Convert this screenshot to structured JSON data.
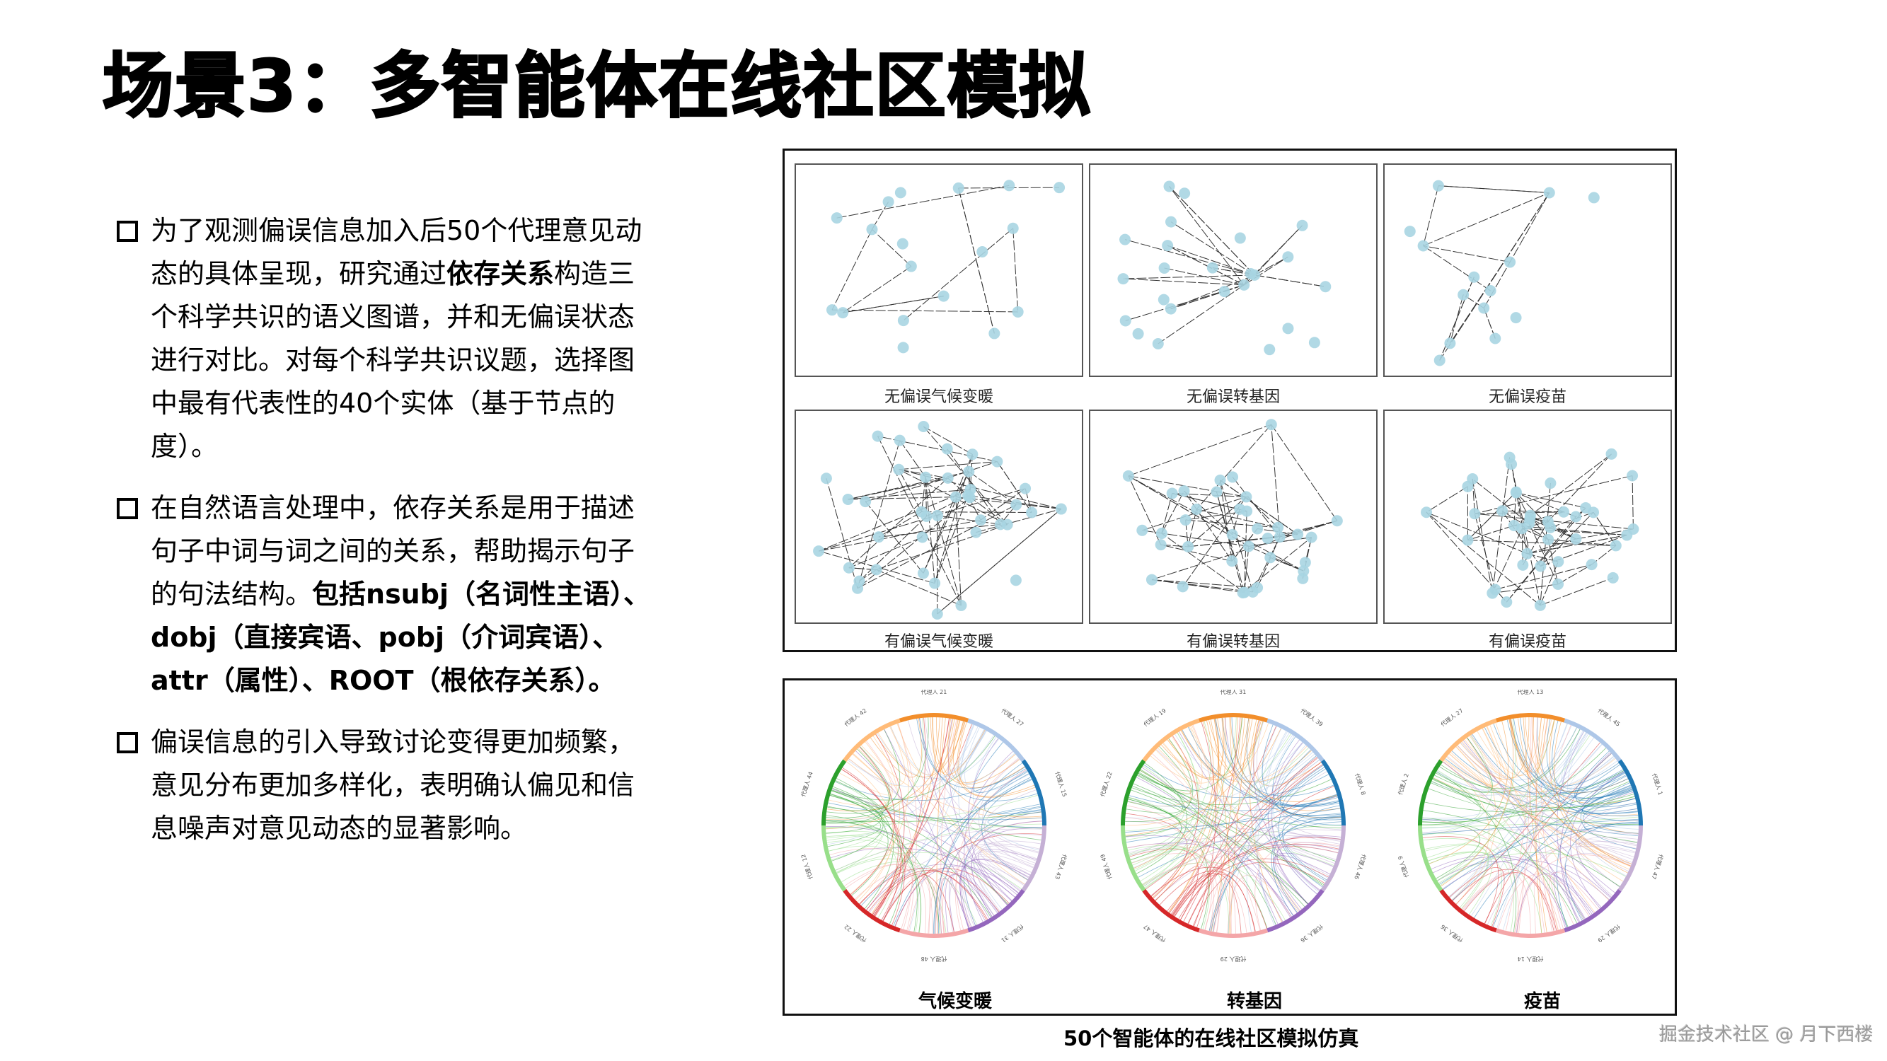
{
  "slide": {
    "title": "场景3：多智能体在线社区模拟",
    "bullets": [
      {
        "segments": [
          {
            "text": "为了观测偏误信息加入后50个代理意见动态的具体呈现，研究通过",
            "bold": false
          },
          {
            "text": "依存关系",
            "bold": true
          },
          {
            "text": "构造三个科学共识的语义图谱，并和无偏误状态进行对比。对每个科学共识议题，选择图中最有代表性的40个实体（基于节点的度）。",
            "bold": false
          }
        ]
      },
      {
        "segments": [
          {
            "text": "在自然语言处理中，依存关系是用于描述句子中词与词之间的关系，帮助揭示句子的句法结构。",
            "bold": false
          },
          {
            "text": "包括nsubj（名词性主语）、 dobj（直接宾语、pobj（介词宾语）、attr（属性）、ROOT（根依存关系）。",
            "bold": true
          }
        ]
      },
      {
        "segments": [
          {
            "text": "偏误信息的引入导致讨论变得更加频繁，意见分布更加多样化，表明确认偏见和信息噪声对意见动态的显著影响。",
            "bold": false
          }
        ]
      }
    ],
    "caption": "50个智能体的在线社区模拟仿真",
    "watermark": "掘金技术社区 @ 月下西楼"
  },
  "semantic_graphs": {
    "node_color": "#a8d5e2",
    "edge_color": "#333333",
    "edge_labels": [
      "nsubj",
      "dobj",
      "pobj",
      "attr",
      "ROOT"
    ],
    "panels": [
      {
        "label": "无偏误气候变暖",
        "density": "sparse",
        "seed": 11,
        "nodes": 18,
        "edges": 14
      },
      {
        "label": "无偏误转基因",
        "density": "star",
        "seed": 23,
        "nodes": 24,
        "edges": 30
      },
      {
        "label": "无偏误疫苗",
        "density": "sparse",
        "seed": 37,
        "nodes": 14,
        "edges": 15
      },
      {
        "label": "有偏误气候变暖",
        "density": "dense",
        "seed": 41,
        "nodes": 40,
        "edges": 70
      },
      {
        "label": "有偏误转基因",
        "density": "dense",
        "seed": 53,
        "nodes": 36,
        "edges": 60
      },
      {
        "label": "有偏误疫苗",
        "density": "dense",
        "seed": 67,
        "nodes": 40,
        "edges": 70
      }
    ]
  },
  "chord_diagrams": {
    "segment_colors": [
      "#f28e2b",
      "#aec7e8",
      "#1f77b4",
      "#c5b0d5",
      "#9467bd",
      "#f4a6a8",
      "#d62728",
      "#98df8a",
      "#2ca02c",
      "#ffbb78"
    ],
    "items": [
      {
        "label": "气候变暖",
        "seed": 5,
        "agent_labels": [
          "代理人 21",
          "代理人 27",
          "代理人 15",
          "代理人 43",
          "代理人 31",
          "代理人 48",
          "代理人 22",
          "代理人 12",
          "代理人 44",
          "代理人 42"
        ]
      },
      {
        "label": "转基因",
        "seed": 9,
        "agent_labels": [
          "代理人 31",
          "代理人 39",
          "代理人 8",
          "代理人 46",
          "代理人 36",
          "代理人 29",
          "代理人 47",
          "代理人 49",
          "代理人 22",
          "代理人 19"
        ]
      },
      {
        "label": "疫苗",
        "seed": 13,
        "agent_labels": [
          "代理人 13",
          "代理人 45",
          "代理人 1",
          "代理人 47",
          "代理人 29",
          "代理人 14",
          "代理人 36",
          "代理人 9",
          "代理人 2",
          "代理人 27"
        ]
      }
    ]
  }
}
